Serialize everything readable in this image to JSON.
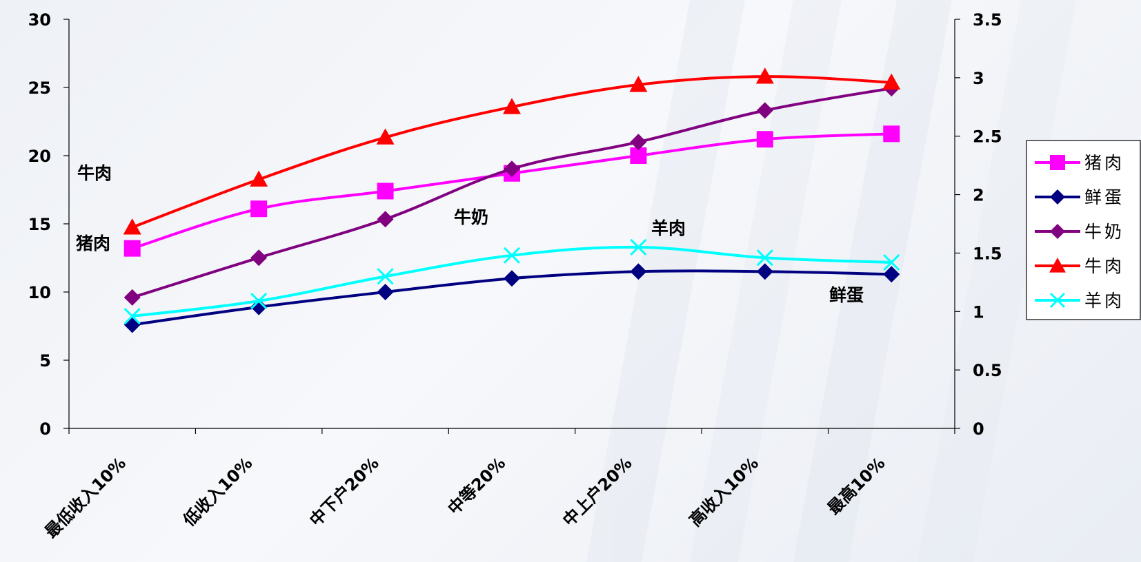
{
  "chart_data": {
    "type": "line",
    "categories": [
      "最低收入10%",
      "低收入10%",
      "中下户20%",
      "中等20%",
      "中上户20%",
      "高收入10%",
      "最高10%"
    ],
    "left_axis": {
      "min": 0,
      "max": 30,
      "ticks": [
        "0",
        "5",
        "10",
        "15",
        "20",
        "25",
        "30"
      ]
    },
    "right_axis": {
      "min": 0,
      "max": 3.5,
      "ticks": [
        "0",
        "0.5",
        "1",
        "1.5",
        "2",
        "2.5",
        "3",
        "3.5"
      ]
    },
    "series": [
      {
        "name": "猪肉",
        "axis": "left",
        "color": "#ff00ff",
        "marker": "square",
        "values": [
          13.2,
          16.1,
          17.4,
          18.7,
          20.0,
          21.2,
          21.6
        ]
      },
      {
        "name": "鲜蛋",
        "axis": "left",
        "color": "#000080",
        "marker": "diamond",
        "values": [
          7.6,
          8.9,
          10.0,
          11.0,
          11.5,
          11.5,
          11.3
        ]
      },
      {
        "name": "牛奶",
        "axis": "right",
        "color": "#800080",
        "marker": "diamond",
        "values": [
          1.12,
          1.46,
          1.79,
          2.22,
          2.45,
          2.72,
          2.91
        ]
      },
      {
        "name": "牛肉",
        "axis": "right",
        "color": "#ff0000",
        "marker": "triangle",
        "values": [
          1.72,
          2.13,
          2.49,
          2.75,
          2.94,
          3.01,
          2.96
        ]
      },
      {
        "name": "羊肉",
        "axis": "right",
        "color": "#00ffff",
        "marker": "x",
        "values": [
          0.96,
          1.09,
          1.3,
          1.48,
          1.55,
          1.46,
          1.42
        ]
      }
    ],
    "annotations": [
      "牛肉",
      "猪肉",
      "牛奶",
      "羊肉",
      "鲜蛋"
    ],
    "legend_placement": "right",
    "grid": false
  }
}
